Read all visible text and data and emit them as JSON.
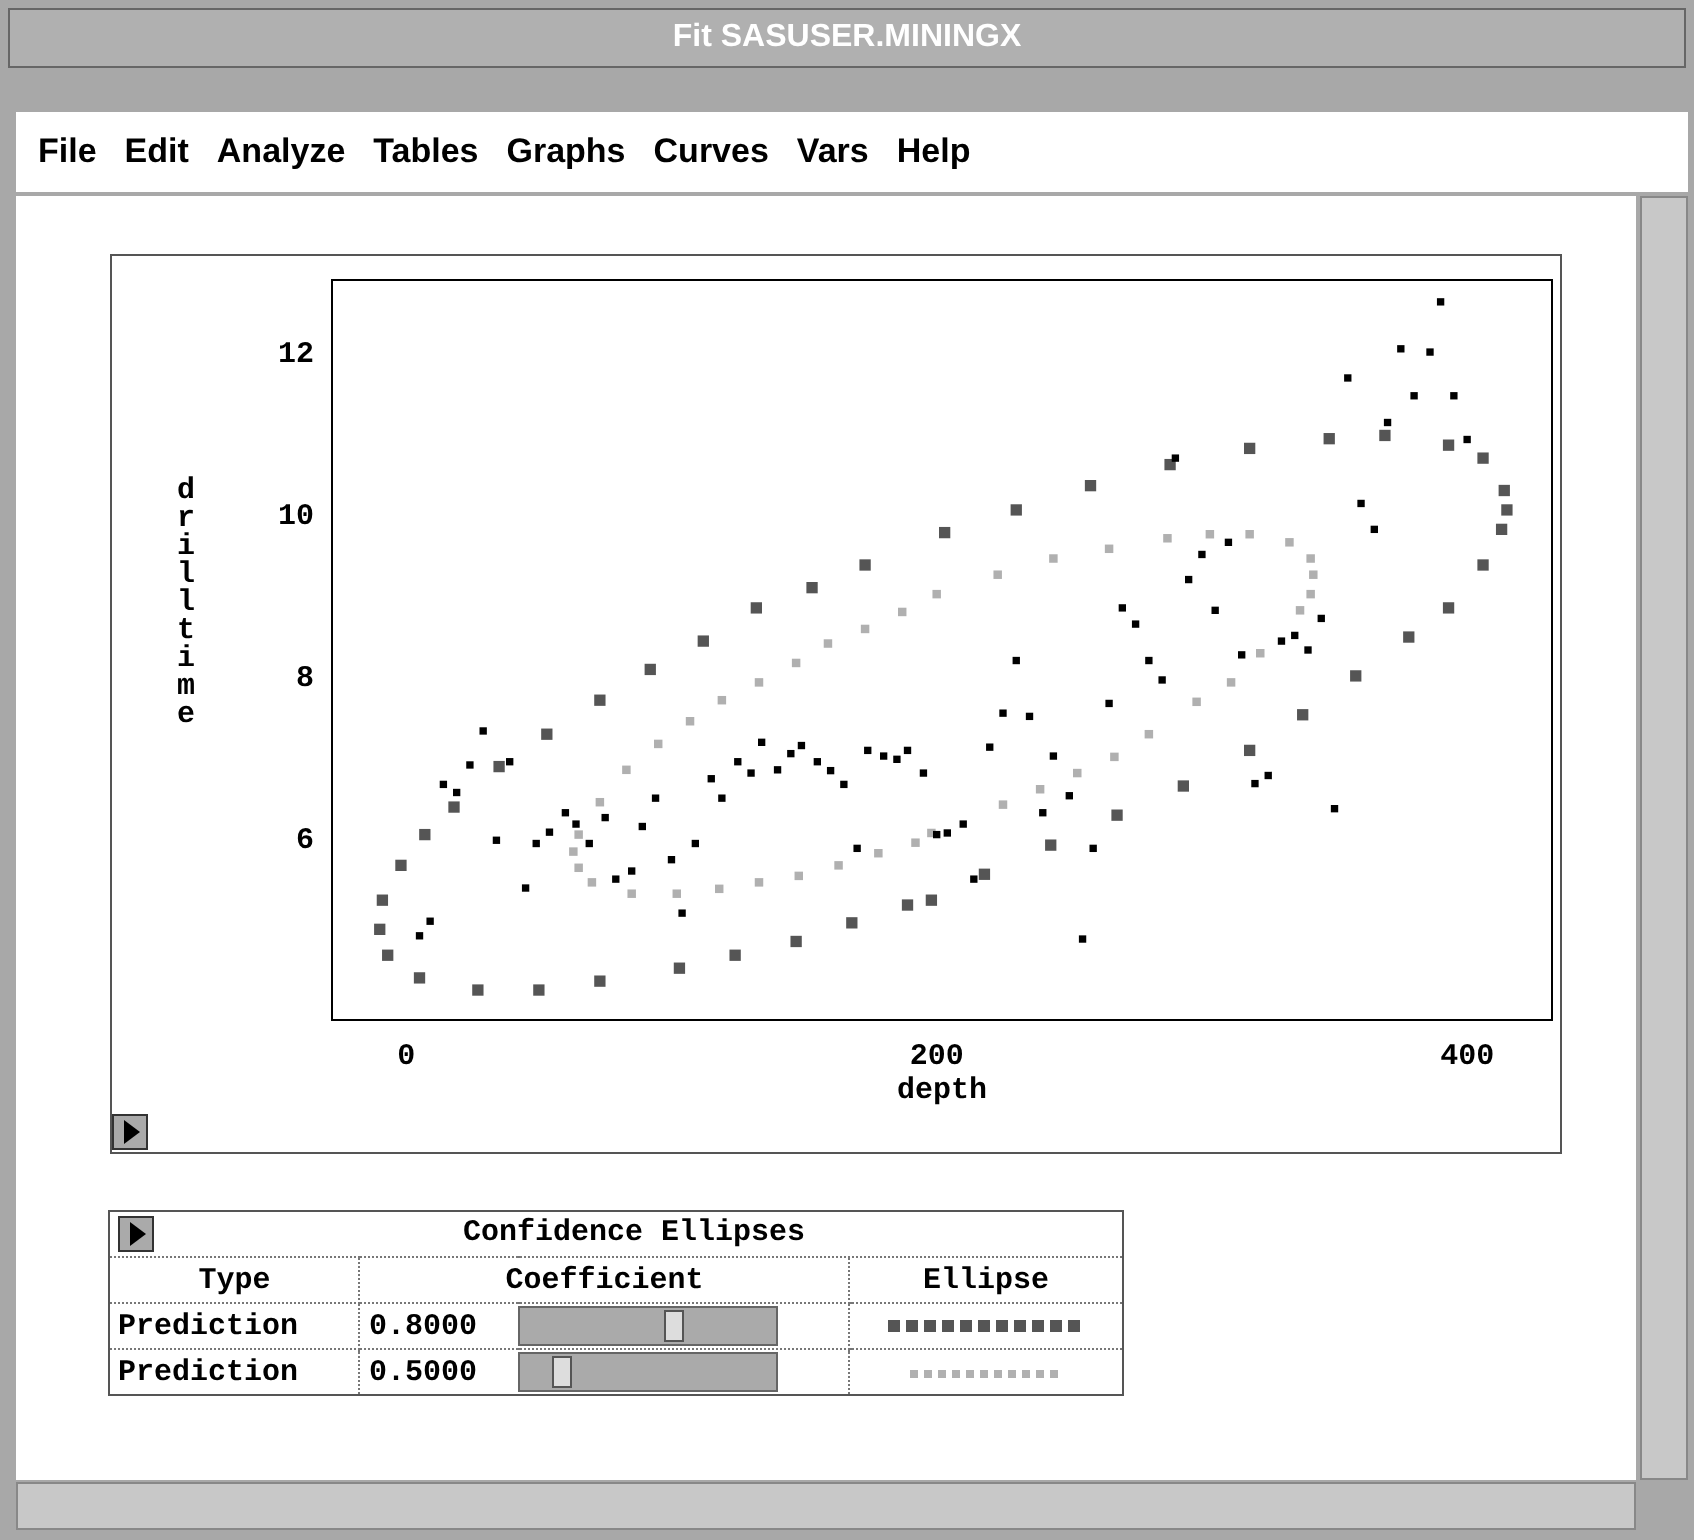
{
  "chart_data": {
    "type": "scatter",
    "title": "Fit SASUSER.MININGX",
    "xlabel": "depth",
    "ylabel": "drilltime",
    "xlim": [
      -28,
      432
    ],
    "ylim": [
      3.78,
      12.92
    ],
    "xticks": [
      0,
      200,
      400
    ],
    "yticks": [
      6,
      8,
      10,
      12
    ],
    "grid": false,
    "legend": false,
    "marker": "square",
    "annotations": [
      "File",
      "Edit",
      "Analyze",
      "Tables",
      "Graphs",
      "Curves",
      "Vars",
      "Help",
      "Confidence Ellipses",
      "Type",
      "Coefficient",
      "Ellipse",
      "Prediction",
      "0.8000",
      "Prediction",
      "0.5000"
    ],
    "series": [
      {
        "color": "#000000",
        "x": [
          5,
          9,
          14,
          19,
          24,
          29,
          34,
          39,
          45,
          49,
          54,
          60,
          64,
          69,
          75,
          79,
          85,
          89,
          94,
          100,
          104,
          109,
          115,
          119,
          125,
          130,
          134,
          140,
          145,
          149,
          155,
          160,
          165,
          170,
          174,
          180,
          185,
          189,
          195,
          200,
          204,
          210,
          214,
          220,
          225,
          230,
          235,
          240,
          244,
          250,
          255,
          259,
          265,
          270,
          275,
          280,
          285,
          290,
          295,
          300,
          305,
          310,
          315,
          320,
          325,
          330,
          335,
          340,
          345,
          350,
          355,
          360,
          365,
          370,
          375,
          380,
          386,
          390,
          395,
          400
        ],
        "values": [
          4.82,
          5.0,
          6.69,
          6.59,
          6.93,
          7.35,
          6.0,
          6.97,
          5.41,
          5.96,
          6.1,
          6.34,
          6.2,
          5.96,
          6.28,
          5.52,
          5.62,
          6.17,
          6.52,
          5.76,
          5.1,
          5.96,
          6.76,
          6.52,
          6.97,
          6.83,
          7.21,
          6.87,
          7.07,
          7.17,
          6.97,
          6.86,
          6.69,
          5.9,
          7.11,
          7.04,
          7.0,
          7.11,
          6.83,
          6.07,
          6.09,
          6.2,
          5.52,
          7.15,
          7.57,
          8.22,
          7.53,
          6.34,
          7.04,
          6.55,
          4.78,
          5.9,
          7.69,
          8.87,
          8.67,
          8.22,
          7.98,
          10.72,
          9.22,
          9.53,
          8.84,
          9.68,
          8.29,
          6.7,
          6.8,
          8.46,
          8.53,
          8.35,
          8.74,
          6.39,
          11.71,
          10.16,
          9.84,
          11.16,
          12.07,
          11.49,
          12.03,
          12.65,
          11.49,
          10.95
        ]
      },
      {
        "color": "#555555",
        "x": [
          -10,
          -7,
          5,
          27,
          50,
          73,
          103,
          124,
          147,
          168,
          189,
          198,
          218,
          243,
          268,
          293,
          318,
          338,
          358,
          378,
          393,
          406,
          413,
          415,
          414,
          406,
          393,
          369,
          348,
          318,
          288,
          258,
          230,
          203,
          173,
          153,
          132,
          112,
          92,
          73,
          53,
          35,
          18,
          7,
          -2,
          -9
        ],
        "values": [
          4.9,
          4.58,
          4.3,
          4.15,
          4.15,
          4.26,
          4.42,
          4.58,
          4.75,
          4.98,
          5.2,
          5.26,
          5.58,
          5.94,
          6.31,
          6.67,
          7.11,
          7.55,
          8.03,
          8.51,
          8.87,
          9.4,
          9.84,
          10.08,
          10.32,
          10.72,
          10.88,
          11.0,
          10.96,
          10.84,
          10.64,
          10.38,
          10.08,
          9.8,
          9.4,
          9.12,
          8.87,
          8.46,
          8.11,
          7.73,
          7.31,
          6.91,
          6.41,
          6.07,
          5.69,
          5.26
        ]
      },
      {
        "color": "#b0b0b0",
        "x": [
          63,
          65,
          70,
          85,
          102,
          118,
          133,
          148,
          163,
          178,
          192,
          198,
          210,
          225,
          239,
          253,
          267,
          280,
          298,
          311,
          322,
          330,
          337,
          341,
          342,
          341,
          333,
          318,
          303,
          287,
          265,
          244,
          223,
          200,
          187,
          173,
          159,
          147,
          133,
          119,
          107,
          95,
          83,
          73,
          65
        ],
        "values": [
          5.86,
          5.66,
          5.48,
          5.34,
          5.34,
          5.4,
          5.48,
          5.56,
          5.69,
          5.84,
          5.97,
          6.09,
          null,
          6.44,
          6.63,
          6.83,
          7.03,
          7.31,
          7.71,
          7.95,
          8.31,
          null,
          8.84,
          9.04,
          9.28,
          9.48,
          9.68,
          9.78,
          9.78,
          9.73,
          9.6,
          9.48,
          9.28,
          9.04,
          8.82,
          8.61,
          8.43,
          8.19,
          7.95,
          7.73,
          7.47,
          7.19,
          6.87,
          6.47,
          6.07
        ]
      }
    ]
  }
}
